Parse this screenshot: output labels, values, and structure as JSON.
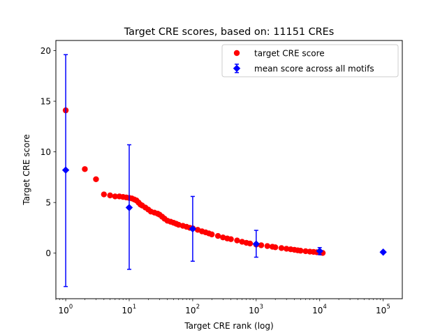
{
  "chart_data": {
    "type": "scatter",
    "title": "Target CRE scores, based on: 11151 CREs",
    "xlabel": "Target CRE rank (log)",
    "ylabel": "Target CRE score",
    "xscale": "log",
    "xlim": [
      0.7,
      200000
    ],
    "ylim": [
      -4.5,
      21
    ],
    "grid": false,
    "legend_position": "top-right",
    "xticks": [
      {
        "value": 1,
        "base": "10",
        "exp": "0"
      },
      {
        "value": 10,
        "base": "10",
        "exp": "1"
      },
      {
        "value": 100,
        "base": "10",
        "exp": "2"
      },
      {
        "value": 1000,
        "base": "10",
        "exp": "3"
      },
      {
        "value": 10000,
        "base": "10",
        "exp": "4"
      },
      {
        "value": 100000,
        "base": "10",
        "exp": "5"
      }
    ],
    "yticks": [
      {
        "value": 0,
        "label": "0"
      },
      {
        "value": 5,
        "label": "5"
      },
      {
        "value": 10,
        "label": "10"
      },
      {
        "value": 15,
        "label": "15"
      },
      {
        "value": 20,
        "label": "20"
      }
    ],
    "series": [
      {
        "name": "target CRE score",
        "kind": "points",
        "marker": "circle",
        "color": "#ff0000",
        "points": [
          [
            1,
            14.1
          ],
          [
            2,
            8.3
          ],
          [
            3,
            7.3
          ],
          [
            4,
            5.8
          ],
          [
            5,
            5.7
          ],
          [
            6,
            5.6
          ],
          [
            7,
            5.6
          ],
          [
            8,
            5.55
          ],
          [
            9,
            5.5
          ],
          [
            10,
            5.45
          ],
          [
            11,
            5.4
          ],
          [
            12,
            5.3
          ],
          [
            13,
            5.2
          ],
          [
            14,
            5.0
          ],
          [
            15,
            4.8
          ],
          [
            16,
            4.7
          ],
          [
            18,
            4.5
          ],
          [
            20,
            4.3
          ],
          [
            22,
            4.1
          ],
          [
            25,
            4.0
          ],
          [
            28,
            3.9
          ],
          [
            30,
            3.8
          ],
          [
            33,
            3.6
          ],
          [
            36,
            3.4
          ],
          [
            40,
            3.2
          ],
          [
            45,
            3.1
          ],
          [
            50,
            3.0
          ],
          [
            55,
            2.9
          ],
          [
            60,
            2.8
          ],
          [
            70,
            2.7
          ],
          [
            80,
            2.6
          ],
          [
            90,
            2.5
          ],
          [
            100,
            2.45
          ],
          [
            120,
            2.3
          ],
          [
            140,
            2.15
          ],
          [
            160,
            2.05
          ],
          [
            180,
            1.95
          ],
          [
            200,
            1.85
          ],
          [
            250,
            1.7
          ],
          [
            300,
            1.55
          ],
          [
            350,
            1.45
          ],
          [
            400,
            1.38
          ],
          [
            500,
            1.25
          ],
          [
            600,
            1.12
          ],
          [
            700,
            1.02
          ],
          [
            800,
            0.95
          ],
          [
            1000,
            0.85
          ],
          [
            1200,
            0.78
          ],
          [
            1500,
            0.7
          ],
          [
            1800,
            0.63
          ],
          [
            2000,
            0.58
          ],
          [
            2500,
            0.5
          ],
          [
            3000,
            0.43
          ],
          [
            3500,
            0.38
          ],
          [
            4000,
            0.33
          ],
          [
            4500,
            0.28
          ],
          [
            5000,
            0.24
          ],
          [
            6000,
            0.19
          ],
          [
            7000,
            0.15
          ],
          [
            8000,
            0.12
          ],
          [
            9000,
            0.09
          ],
          [
            10000,
            0.06
          ],
          [
            10500,
            0.05
          ],
          [
            11151,
            0.02
          ]
        ]
      },
      {
        "name": "mean score across all motifs",
        "kind": "errorbar",
        "marker": "diamond",
        "color": "#0000ff",
        "points": [
          {
            "x": 1,
            "y": 8.2,
            "lo": -3.3,
            "hi": 19.6
          },
          {
            "x": 10,
            "y": 4.5,
            "lo": -1.6,
            "hi": 10.7
          },
          {
            "x": 100,
            "y": 2.4,
            "lo": -0.8,
            "hi": 5.6
          },
          {
            "x": 1000,
            "y": 0.9,
            "lo": -0.4,
            "hi": 2.25
          },
          {
            "x": 10000,
            "y": 0.2,
            "lo": -0.15,
            "hi": 0.55
          },
          {
            "x": 100000,
            "y": 0.1,
            "lo": 0.1,
            "hi": 0.1
          }
        ]
      }
    ],
    "legend": [
      {
        "label": "target CRE score",
        "marker": "circle",
        "color": "#ff0000"
      },
      {
        "label": "mean score across all motifs",
        "marker": "diamond-errorbar",
        "color": "#0000ff"
      }
    ]
  }
}
